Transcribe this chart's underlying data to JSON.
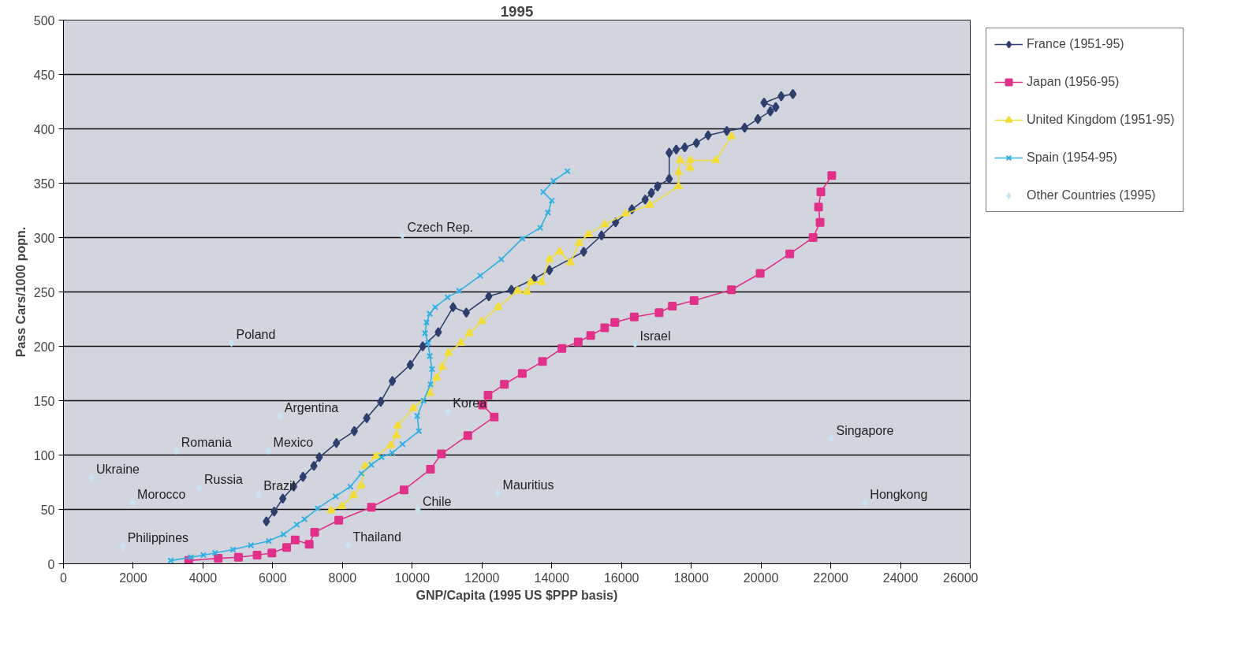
{
  "chart_data": {
    "type": "line",
    "title": "1995",
    "xlabel": "GNP/Capita (1995 US $PPP basis)",
    "ylabel": "Pass Cars/1000 popn.",
    "xlim": [
      0,
      26000
    ],
    "xticks": [
      0,
      2000,
      4000,
      6000,
      8000,
      10000,
      12000,
      14000,
      16000,
      18000,
      20000,
      22000,
      24000,
      26000
    ],
    "ylim": [
      0,
      500
    ],
    "yticks": [
      0,
      50,
      100,
      150,
      200,
      250,
      300,
      350,
      400,
      450,
      500
    ],
    "grid": "y",
    "legend": "right",
    "line_style": "solid",
    "series": [
      {
        "name": "France (1951-95)",
        "color": "#2e3f6e",
        "marker": "diamond",
        "x": [
          5819,
          6042,
          6288,
          6600,
          6867,
          7180,
          7335,
          7826,
          8339,
          8696,
          9097,
          9431,
          9944,
          10301,
          10747,
          11171,
          11550,
          12196,
          12843,
          13490,
          13935,
          14916,
          15429,
          15831,
          16299,
          16678,
          16856,
          17035,
          17369,
          17369,
          17570,
          17815,
          18149,
          18484,
          19019,
          19532,
          19911,
          20268,
          20424,
          20089,
          20580,
          20914
        ],
        "values": [
          39,
          48,
          60,
          71,
          80,
          90,
          98,
          111,
          122,
          134,
          149,
          168,
          183,
          200,
          213,
          236,
          231,
          246,
          252,
          262,
          270,
          287,
          302,
          314,
          326,
          335,
          341,
          347,
          354,
          378,
          381,
          383,
          387,
          394,
          398,
          401,
          409,
          416,
          420,
          424,
          430,
          432
        ]
      },
      {
        "name": "Japan (1956-95)",
        "color": "#e0308a",
        "marker": "square",
        "x": [
          3590,
          4437,
          5017,
          5552,
          5975,
          6399,
          6644,
          7046,
          7202,
          7893,
          8829,
          9766,
          10524,
          10836,
          11594,
          12352,
          12018,
          12174,
          12642,
          13155,
          13735,
          14292,
          14760,
          15117,
          15518,
          15808,
          16366,
          17079,
          17458,
          18082,
          19153,
          19978,
          20825,
          21494,
          21695,
          21650,
          21717,
          22029
        ],
        "values": [
          3,
          5,
          6,
          8,
          10,
          15,
          22,
          18,
          29,
          40,
          52,
          68,
          87,
          101,
          118,
          135,
          146,
          155,
          165,
          175,
          186,
          198,
          204,
          210,
          217,
          222,
          227,
          231,
          237,
          242,
          252,
          267,
          285,
          300,
          314,
          328,
          342,
          357
        ]
      },
      {
        "name": "United Kingdom (1951-95)",
        "color": "#f2dc3a",
        "marker": "triangle",
        "x": [
          7670,
          7982,
          8317,
          8540,
          8651,
          8963,
          9387,
          9543,
          9588,
          10033,
          10502,
          10702,
          10858,
          11037,
          11394,
          11639,
          11996,
          12464,
          13021,
          13289,
          13400,
          13712,
          13935,
          14225,
          14537,
          14783,
          15050,
          15518,
          16120,
          16811,
          17636,
          17636,
          17681,
          17971,
          17971,
          18707,
          19153
        ],
        "values": [
          49,
          53,
          63,
          72,
          90,
          99,
          109,
          118,
          127,
          143,
          157,
          171,
          181,
          194,
          203,
          212,
          223,
          236,
          251,
          250,
          259,
          259,
          280,
          287,
          277,
          295,
          303,
          312,
          322,
          330,
          347,
          360,
          371,
          364,
          371,
          371,
          393
        ]
      },
      {
        "name": "Spain (1954-95)",
        "color": "#30b0e0",
        "marker": "cross",
        "x": [
          3077,
          3657,
          4013,
          4348,
          4861,
          5373,
          5886,
          6310,
          6689,
          6912,
          7291,
          7804,
          8227,
          8540,
          8829,
          9119,
          9431,
          9721,
          10190,
          10145,
          10323,
          10524,
          10569,
          10502,
          10457,
          10368,
          10412,
          10502,
          10658,
          11014,
          11349,
          11951,
          12553,
          13155,
          13668,
          13891,
          14002,
          13757,
          14047,
          14448
        ],
        "values": [
          3,
          6,
          8,
          10,
          13,
          17,
          21,
          27,
          36,
          41,
          51,
          62,
          71,
          83,
          91,
          98,
          102,
          110,
          122,
          136,
          150,
          165,
          179,
          191,
          203,
          212,
          222,
          230,
          236,
          245,
          251,
          265,
          280,
          299,
          309,
          323,
          334,
          342,
          352,
          361
        ]
      },
      {
        "name": "Other Countries (1995)",
        "type": "scatter",
        "color": "#c8e4f4",
        "marker": "diamond",
        "x": [
          9720,
          4816,
          16390,
          6200,
          11030,
          3240,
          5880,
          22020,
          800,
          3900,
          5600,
          1980,
          12460,
          22990,
          10160,
          1700,
          8160
        ],
        "values": [
          302,
          203,
          202,
          136,
          140,
          104,
          104,
          115,
          79,
          70,
          64,
          56,
          65,
          56,
          50,
          16,
          17
        ]
      }
    ],
    "annotations": [
      {
        "text": "Czech Rep.",
        "x": 9720,
        "y": 302
      },
      {
        "text": "Poland",
        "x": 4816,
        "y": 203
      },
      {
        "text": "Israel",
        "x": 16390,
        "y": 202
      },
      {
        "text": "Argentina",
        "x": 6200,
        "y": 136
      },
      {
        "text": "Korea",
        "x": 11030,
        "y": 140
      },
      {
        "text": "Romania",
        "x": 3240,
        "y": 104
      },
      {
        "text": "Mexico",
        "x": 5880,
        "y": 104
      },
      {
        "text": "Singapore",
        "x": 22020,
        "y": 115
      },
      {
        "text": "Ukraine",
        "x": 800,
        "y": 79
      },
      {
        "text": "Russia",
        "x": 3900,
        "y": 70
      },
      {
        "text": "Brazil",
        "x": 5600,
        "y": 64
      },
      {
        "text": "Morocco",
        "x": 1980,
        "y": 56
      },
      {
        "text": "Mauritius",
        "x": 12460,
        "y": 65
      },
      {
        "text": "Hongkong",
        "x": 22990,
        "y": 56
      },
      {
        "text": "Chile",
        "x": 10160,
        "y": 50
      },
      {
        "text": "Philippines",
        "x": 1700,
        "y": 16
      },
      {
        "text": "Thailand",
        "x": 8160,
        "y": 17
      }
    ]
  }
}
